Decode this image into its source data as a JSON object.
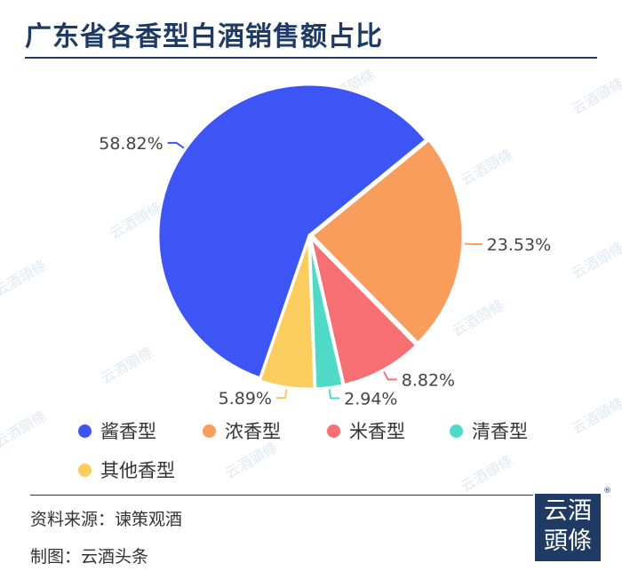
{
  "title": "广东省各香型白酒销售额占比",
  "chart_data": {
    "type": "pie",
    "title": "广东省各香型白酒销售额占比",
    "slices": [
      {
        "name": "酱香型",
        "value": 58.82,
        "label": "58.82%",
        "color": "#3d55f5"
      },
      {
        "name": "浓香型",
        "value": 23.53,
        "label": "23.53%",
        "color": "#f99d5d"
      },
      {
        "name": "米香型",
        "value": 8.82,
        "label": "8.82%",
        "color": "#f66f73"
      },
      {
        "name": "清香型",
        "value": 2.94,
        "label": "2.94%",
        "color": "#4fd9c7"
      },
      {
        "name": "其他香型",
        "value": 5.89,
        "label": "5.89%",
        "color": "#fbcc5e"
      }
    ],
    "legend_position": "bottom"
  },
  "footer": {
    "source": "资料来源：谏策观酒",
    "made_by": "制图：云酒头条"
  },
  "logo": {
    "line1": "云酒",
    "line2": "頭條",
    "reg": "®"
  },
  "watermark": "云酒頭條"
}
